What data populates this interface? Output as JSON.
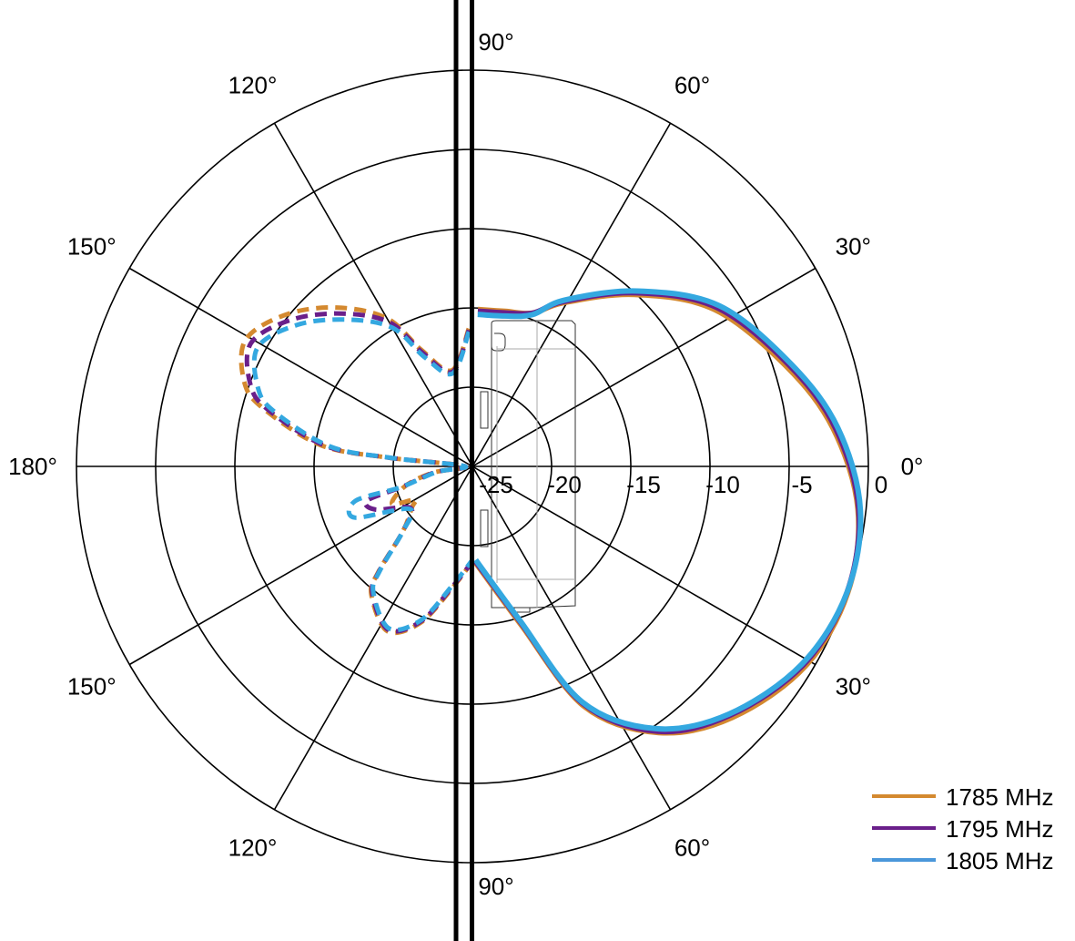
{
  "chart_data": {
    "type": "polar-line",
    "title": "",
    "radial_axis": {
      "min": -25,
      "max": 0,
      "ticks": [
        -25,
        -20,
        -15,
        -10,
        -5,
        0
      ],
      "tick_labels": [
        "-25",
        "-20",
        "-15",
        "-10",
        "-5",
        "0"
      ]
    },
    "angular_axis": {
      "spoke_step_deg": 30,
      "tick_labels": [
        {
          "angle": 90,
          "text": "90°"
        },
        {
          "angle": 60,
          "text": "60°"
        },
        {
          "angle": 30,
          "text": "30°"
        },
        {
          "angle": 0,
          "text": "0°"
        },
        {
          "angle": 180,
          "text": "180°"
        },
        {
          "angle": 150,
          "text": "150°"
        },
        {
          "angle": 120,
          "text": "120°"
        },
        {
          "angle": -30,
          "text": "30°"
        },
        {
          "angle": -60,
          "text": "60°"
        },
        {
          "angle": -90,
          "text": "90°"
        },
        {
          "angle": -120,
          "text": "120°"
        },
        {
          "angle": -150,
          "text": "150°"
        }
      ]
    },
    "grid": true,
    "legend_position": "bottom-right",
    "series": [
      {
        "name": "1785 MHz",
        "color": "#D4892F",
        "front": [
          [
            -88,
            -18.9
          ],
          [
            -73,
            -14.6
          ],
          [
            -65,
            -8.3
          ],
          [
            -55,
            -4.5
          ],
          [
            -44,
            -2.2
          ],
          [
            -31,
            -0.5
          ],
          [
            -18.6,
            0
          ],
          [
            -6.4,
            -0.5
          ],
          [
            6,
            -2.1
          ],
          [
            17.7,
            -4.2
          ],
          [
            33,
            -6.8
          ],
          [
            46.7,
            -10.1
          ],
          [
            61,
            -13.2
          ],
          [
            68.4,
            -14.6
          ],
          [
            78,
            -15.0
          ],
          [
            88,
            -15.1
          ]
        ],
        "back": [
          [
            91.5,
            -16.3
          ],
          [
            102,
            -18.8
          ],
          [
            113.6,
            -17.0
          ],
          [
            120,
            -14.2
          ],
          [
            130.6,
            -11.8
          ],
          [
            141,
            -9.8
          ],
          [
            151,
            -8.6
          ],
          [
            160,
            -9.7
          ],
          [
            164.7,
            -11.4
          ],
          [
            172,
            -15.3
          ],
          [
            174,
            -19.4
          ],
          [
            178,
            -24.5
          ],
          [
            189,
            -22.5
          ],
          [
            196.2,
            -20.6
          ],
          [
            205,
            -19.4
          ],
          [
            210,
            -20.8
          ],
          [
            214,
            -20.4
          ],
          [
            223,
            -19.0
          ],
          [
            228.4,
            -16.0
          ],
          [
            231.7,
            -14.7
          ],
          [
            242.7,
            -13.3
          ],
          [
            251.6,
            -14.6
          ],
          [
            260.5,
            -17.2
          ],
          [
            270,
            -19.0
          ]
        ]
      },
      {
        "name": "1795 MHz",
        "color": "#6A1F8A",
        "front": [
          [
            -88,
            -19.0
          ],
          [
            -73,
            -14.8
          ],
          [
            -65,
            -8.5
          ],
          [
            -55,
            -4.6
          ],
          [
            -44,
            -2.4
          ],
          [
            -31,
            -0.65
          ],
          [
            -18.6,
            -0.05
          ],
          [
            -6.4,
            -0.45
          ],
          [
            6,
            -1.95
          ],
          [
            17.7,
            -4.0
          ],
          [
            33,
            -6.6
          ],
          [
            46.7,
            -9.95
          ],
          [
            61,
            -13.1
          ],
          [
            68.4,
            -14.6
          ],
          [
            78,
            -15.1
          ],
          [
            88,
            -15.2
          ]
        ],
        "back": [
          [
            91.5,
            -16.4
          ],
          [
            102,
            -18.9
          ],
          [
            113.6,
            -17.2
          ],
          [
            120,
            -14.5
          ],
          [
            130.6,
            -12.3
          ],
          [
            141,
            -10.3
          ],
          [
            151,
            -9.0
          ],
          [
            160,
            -10.1
          ],
          [
            164.7,
            -11.7
          ],
          [
            172,
            -15.6
          ],
          [
            174,
            -19.6
          ],
          [
            178,
            -24.5
          ],
          [
            189,
            -22.6
          ],
          [
            196.2,
            -20.4
          ],
          [
            198,
            -18.0
          ],
          [
            204,
            -18.3
          ],
          [
            214,
            -20.3
          ],
          [
            223,
            -19.0
          ],
          [
            228.4,
            -16.1
          ],
          [
            231.7,
            -14.8
          ],
          [
            242.7,
            -13.4
          ],
          [
            251.6,
            -14.7
          ],
          [
            260.5,
            -17.3
          ],
          [
            270,
            -19.0
          ]
        ]
      },
      {
        "name": "1805 MHz",
        "color": "#34A8E0",
        "front": [
          [
            -88,
            -19.1
          ],
          [
            -73,
            -14.9
          ],
          [
            -65,
            -8.6
          ],
          [
            -55,
            -4.8
          ],
          [
            -44,
            -2.5
          ],
          [
            -31,
            -0.75
          ],
          [
            -18.6,
            -0.05
          ],
          [
            -6.4,
            -0.35
          ],
          [
            6,
            -1.8
          ],
          [
            17.7,
            -3.85
          ],
          [
            33,
            -6.4
          ],
          [
            46.7,
            -9.8
          ],
          [
            61,
            -13.0
          ],
          [
            68.4,
            -14.7
          ],
          [
            78,
            -15.3
          ],
          [
            88,
            -15.4
          ]
        ],
        "back": [
          [
            91.5,
            -16.5
          ],
          [
            102,
            -19.0
          ],
          [
            113.6,
            -17.5
          ],
          [
            120,
            -14.9
          ],
          [
            130.6,
            -12.8
          ],
          [
            141,
            -10.8
          ],
          [
            151,
            -9.5
          ],
          [
            160,
            -10.6
          ],
          [
            164.7,
            -12.1
          ],
          [
            172,
            -15.9
          ],
          [
            174,
            -19.8
          ],
          [
            178,
            -24.5
          ],
          [
            189,
            -22.7
          ],
          [
            196.2,
            -20.3
          ],
          [
            196.4,
            -17.3
          ],
          [
            203.5,
            -16.9
          ],
          [
            214,
            -20.2
          ],
          [
            223,
            -19.0
          ],
          [
            228.4,
            -16.2
          ],
          [
            231.7,
            -14.9
          ],
          [
            242.7,
            -13.5
          ],
          [
            251.6,
            -14.8
          ],
          [
            260.5,
            -17.4
          ],
          [
            270,
            -19.1
          ]
        ]
      }
    ]
  }
}
